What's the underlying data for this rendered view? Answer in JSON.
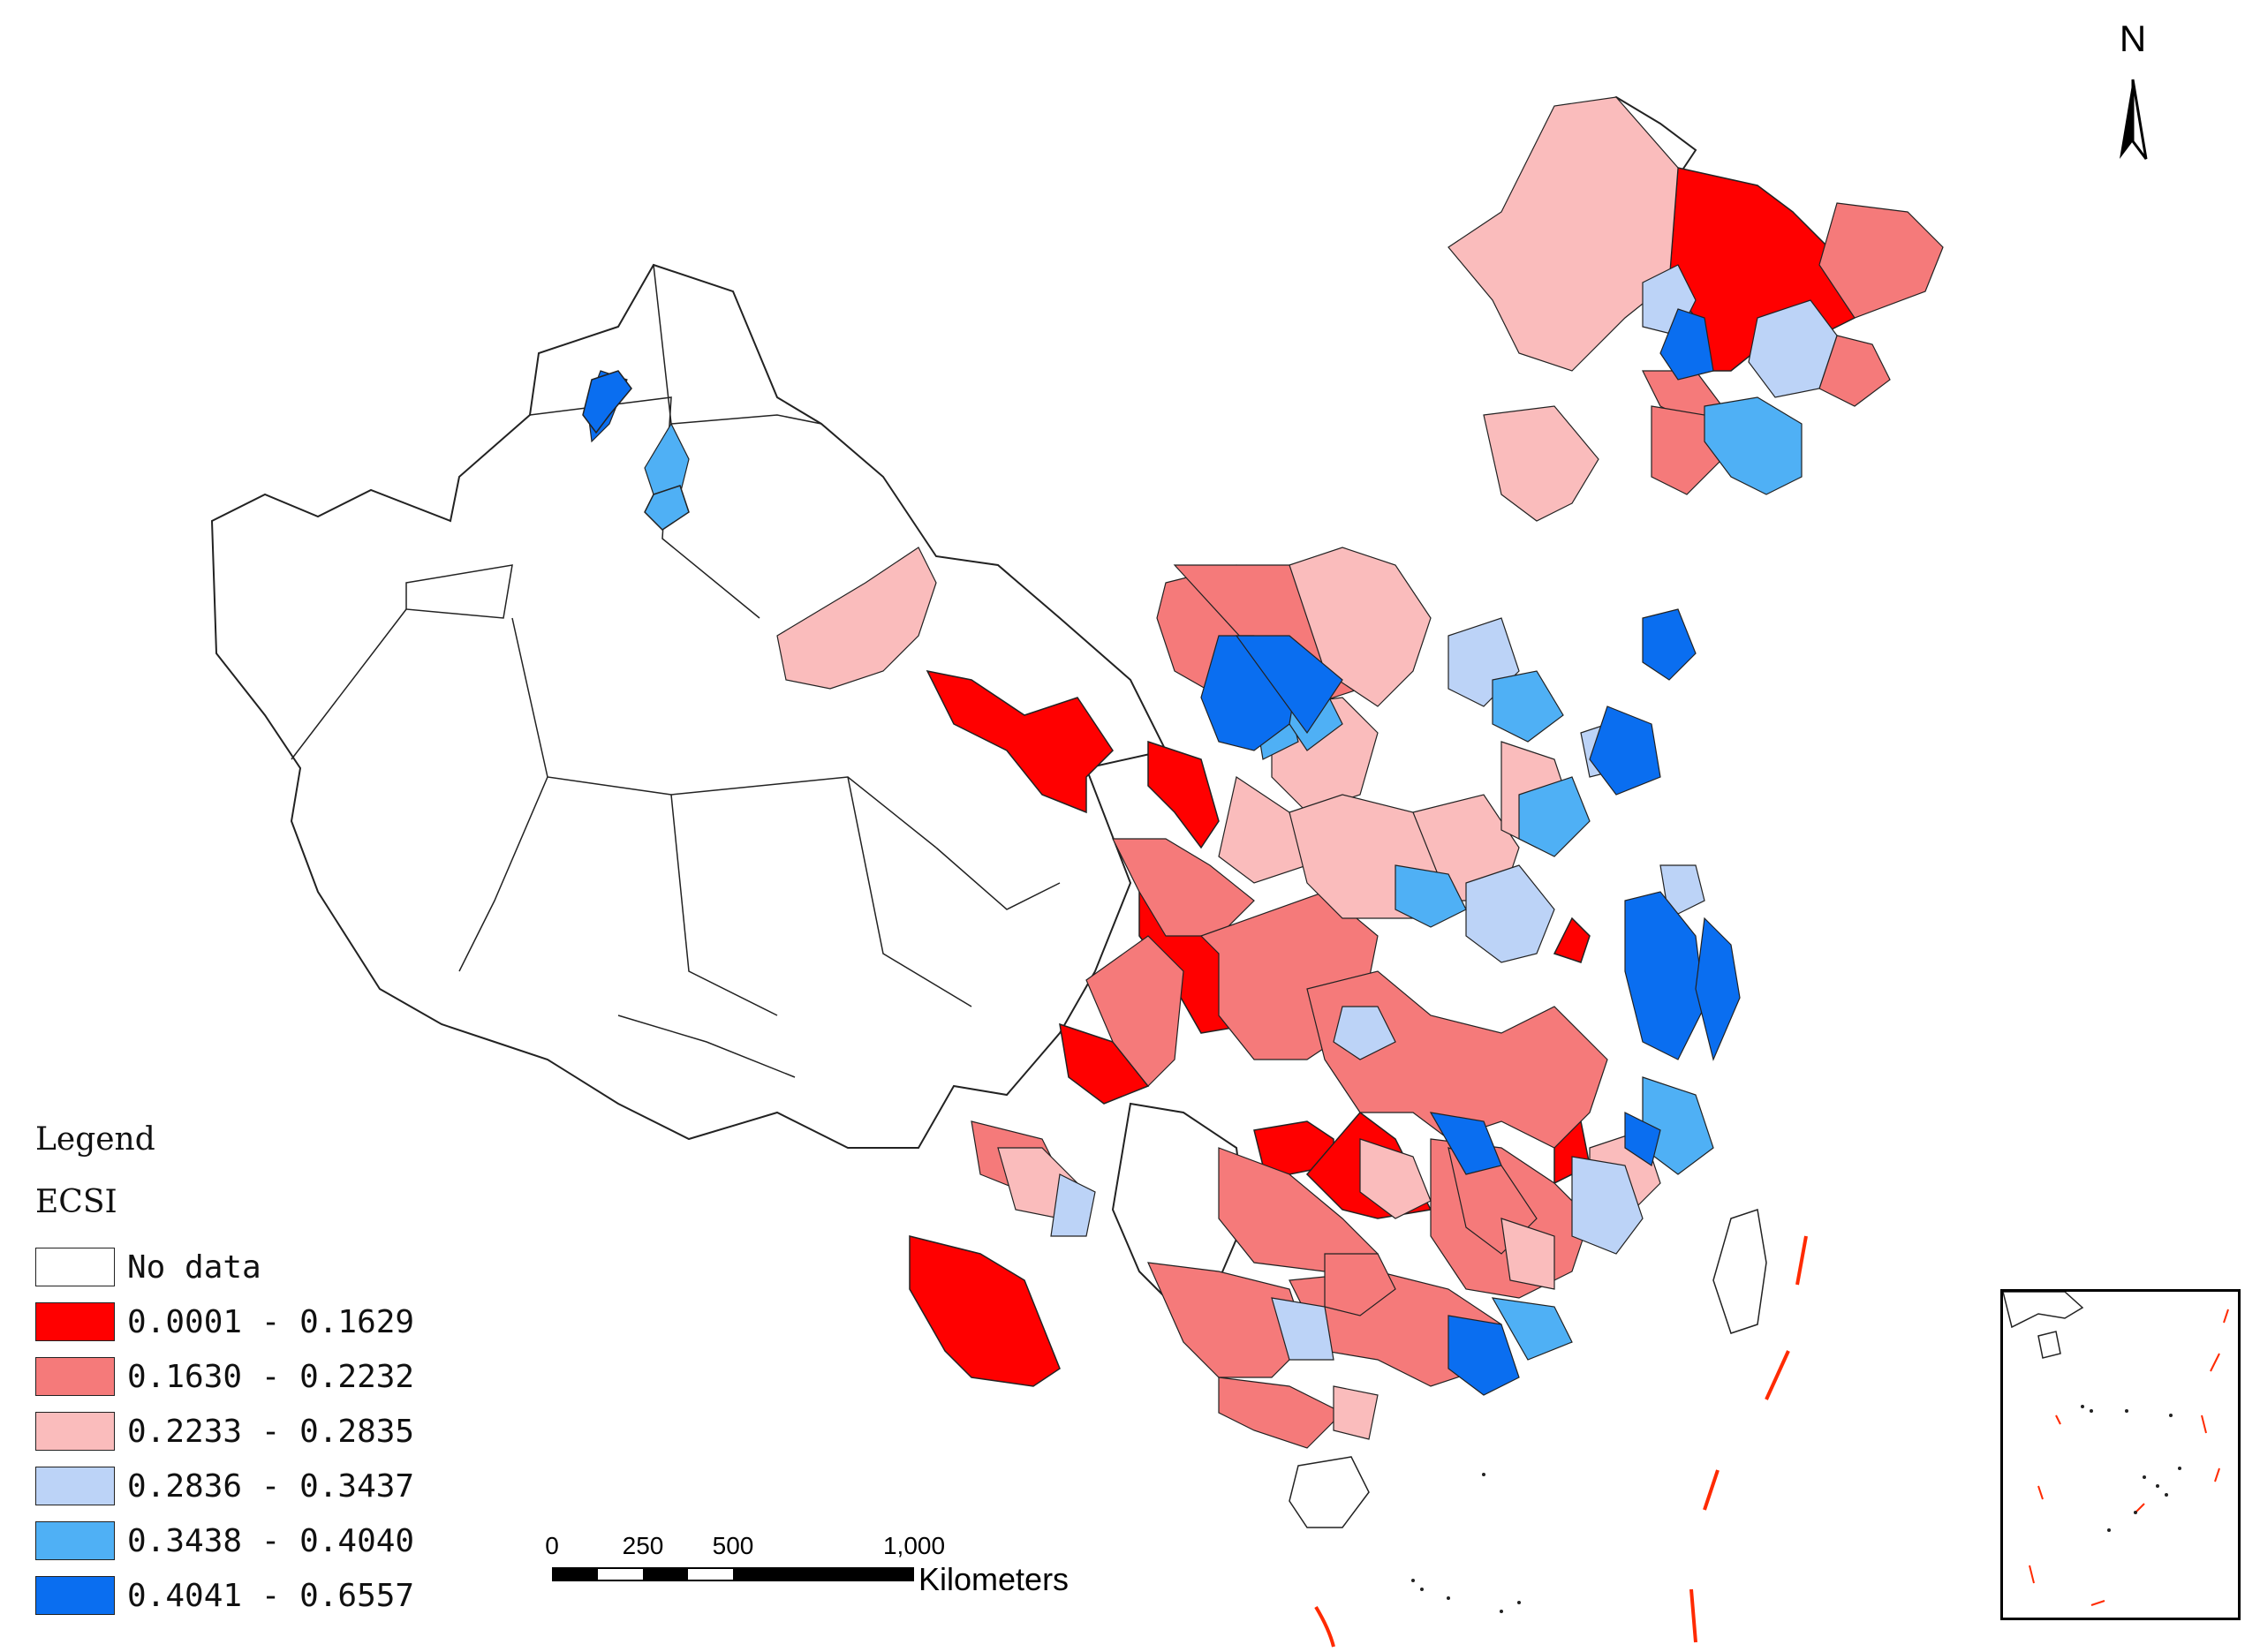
{
  "legend": {
    "title": "Legend",
    "field": "ECSI",
    "classes": [
      {
        "label": "No data",
        "color": "#ffffff"
      },
      {
        "label": "0.0001 - 0.1629",
        "color": "#ff0000"
      },
      {
        "label": "0.1630 - 0.2232",
        "color": "#f57a7a"
      },
      {
        "label": "0.2233 - 0.2835",
        "color": "#fabcbc"
      },
      {
        "label": "0.2836 - 0.3437",
        "color": "#bcd3f7"
      },
      {
        "label": "0.3438 - 0.4040",
        "color": "#4fb0f5"
      },
      {
        "label": "0.4041 - 0.6557",
        "color": "#0a6ef0"
      }
    ]
  },
  "scale_bar": {
    "ticks": [
      "0",
      "250",
      "500",
      "1,000"
    ],
    "unit": "Kilometers"
  },
  "north_arrow": {
    "label": "N"
  },
  "colors": {
    "border": "#222222",
    "dash_line": "#ff2a00"
  }
}
